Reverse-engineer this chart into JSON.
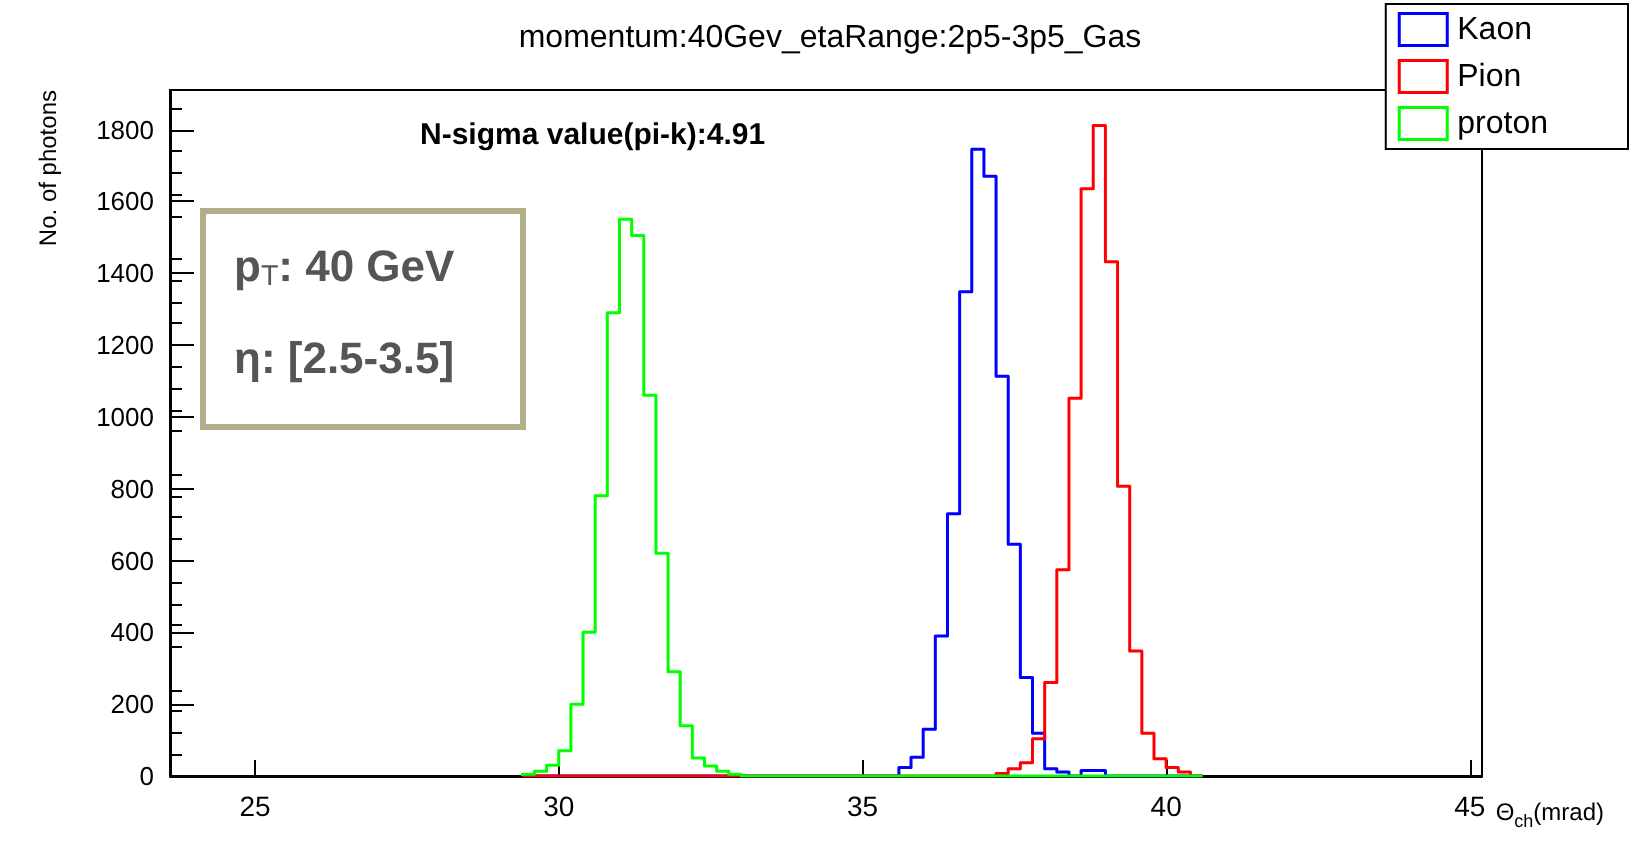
{
  "chart_data": {
    "type": "histogram",
    "title": "momentum:40Gev_etaRange:2p5-3p5_Gas",
    "xlabel": "Θ$_{ch}$(mrad)",
    "ylabel": "No. of photons",
    "annotations": [
      "N-sigma value(pi-k):4.91",
      "p$_{T}$: 40 GeV",
      "η: [2.5-3.5]"
    ],
    "bins": [
      29.4,
      29.6,
      29.8,
      30.0,
      30.2,
      30.4,
      30.6,
      30.8,
      31.0,
      31.2,
      31.4,
      31.6,
      31.8,
      32.0,
      32.2,
      32.4,
      32.6,
      32.8,
      33.0,
      33.2,
      33.4,
      33.6,
      33.8,
      34.0,
      34.2,
      34.4,
      34.6,
      34.8,
      35.0,
      35.2,
      35.4,
      35.6,
      35.8,
      36.0,
      36.2,
      36.4,
      36.6,
      36.8,
      37.0,
      37.2,
      37.4,
      37.6,
      37.8,
      38.0,
      38.2,
      38.4,
      38.6,
      38.8,
      39.0,
      39.2,
      39.4,
      39.6,
      39.8,
      40.0,
      40.2,
      40.4,
      40.6
    ],
    "series": [
      {
        "name": "Kaon",
        "color": "#0000ff",
        "values": [
          0,
          0,
          0,
          0,
          0,
          0,
          0,
          0,
          0,
          0,
          0,
          0,
          0,
          0,
          0,
          0,
          0,
          0,
          0,
          0,
          0,
          0,
          0,
          0,
          0,
          0,
          0,
          0,
          0,
          0,
          0,
          24,
          52,
          130,
          390,
          730,
          1348,
          1745,
          1670,
          1113,
          645,
          274,
          119,
          20,
          11,
          0,
          15,
          15,
          0,
          0,
          0,
          0,
          0,
          0,
          0,
          0
        ]
      },
      {
        "name": "Pion",
        "color": "#ff0000",
        "values": [
          0,
          0,
          0,
          0,
          0,
          0,
          0,
          0,
          0,
          0,
          0,
          0,
          0,
          0,
          0,
          0,
          0,
          0,
          0,
          0,
          0,
          0,
          0,
          0,
          0,
          0,
          0,
          0,
          0,
          0,
          0,
          0,
          0,
          0,
          0,
          0,
          0,
          0,
          0,
          7,
          20,
          37,
          104,
          260,
          574,
          1052,
          1635,
          1811,
          1432,
          807,
          348,
          119,
          48,
          24,
          11,
          0
        ]
      },
      {
        "name": "proton",
        "color": "#00ff00",
        "values": [
          5,
          13,
          30,
          70,
          200,
          400,
          780,
          1290,
          1550,
          1505,
          1060,
          620,
          290,
          140,
          50,
          28,
          13,
          5,
          0,
          0,
          0,
          0,
          0,
          0,
          0,
          0,
          0,
          0,
          0,
          0,
          0,
          0,
          0,
          0,
          0,
          0,
          0,
          0,
          0,
          0,
          0,
          0,
          0,
          0,
          0,
          0,
          0,
          0,
          0,
          0,
          0,
          0,
          0,
          0,
          0,
          0
        ]
      }
    ],
    "xlim": [
      23.6,
      45.2
    ],
    "xticks": [
      25,
      30,
      35,
      40,
      45
    ],
    "ylim": [
      0,
      1910
    ],
    "yticks": [
      0,
      200,
      400,
      600,
      800,
      1000,
      1200,
      1400,
      1600,
      1800
    ],
    "grid": false,
    "legend": "top right"
  }
}
